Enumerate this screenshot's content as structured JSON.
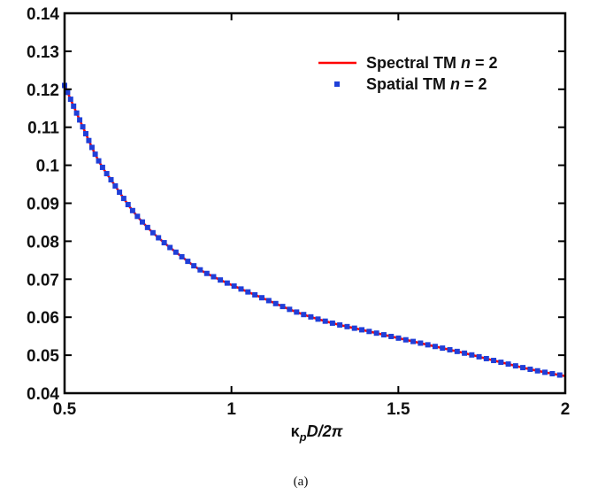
{
  "chart_data": {
    "type": "line",
    "xlabel_parts": {
      "kappa": "κ",
      "sub": "p",
      "rest": "D/2π"
    },
    "xlim": [
      0.5,
      2
    ],
    "ylim": [
      0.04,
      0.14
    ],
    "xticks": [
      "0.5",
      "1",
      "1.5",
      "2"
    ],
    "yticks": [
      "0.04",
      "0.05",
      "0.06",
      "0.07",
      "0.08",
      "0.09",
      "0.1",
      "0.11",
      "0.12",
      "0.13",
      "0.14"
    ],
    "legend_position": "top-right",
    "grid": false,
    "series": [
      {
        "name": "Spectral TM n = 2",
        "legend_parts": {
          "pre": "Spectral TM ",
          "italic": "n",
          "post": " = 2"
        },
        "style": "line",
        "color": "#ff0000",
        "x": [
          0.5,
          0.55,
          0.6,
          0.65,
          0.7,
          0.75,
          0.8,
          0.85,
          0.9,
          0.95,
          1.0,
          1.1,
          1.2,
          1.3,
          1.4,
          1.5,
          1.6,
          1.7,
          1.8,
          1.9,
          2.0
        ],
        "y": [
          0.121,
          0.111,
          0.1015,
          0.0948,
          0.0885,
          0.0835,
          0.0795,
          0.076,
          0.0728,
          0.0705,
          0.0685,
          0.0648,
          0.0612,
          0.0585,
          0.0565,
          0.0545,
          0.0525,
          0.0505,
          0.0483,
          0.0462,
          0.0445
        ]
      },
      {
        "name": "Spatial TM n = 2",
        "legend_parts": {
          "pre": "Spatial   TM ",
          "italic": "n",
          "post": " = 2"
        },
        "style": "markers",
        "color": "#1f3fd8",
        "x": [
          0.5,
          0.55,
          0.6,
          0.65,
          0.7,
          0.75,
          0.8,
          0.85,
          0.9,
          0.95,
          1.0,
          1.1,
          1.2,
          1.3,
          1.4,
          1.5,
          1.6,
          1.7,
          1.8,
          1.9,
          2.0
        ],
        "y": [
          0.121,
          0.111,
          0.1015,
          0.0948,
          0.0885,
          0.0835,
          0.0795,
          0.076,
          0.0728,
          0.0705,
          0.0685,
          0.0648,
          0.0612,
          0.0585,
          0.0565,
          0.0545,
          0.0525,
          0.0505,
          0.0483,
          0.0462,
          0.0445
        ]
      }
    ]
  },
  "caption": "(a)"
}
